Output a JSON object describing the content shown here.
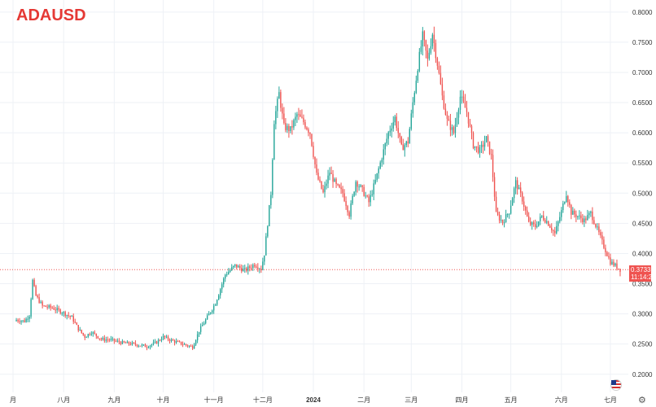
{
  "header": {
    "symbol": "ADAUSD"
  },
  "colors": {
    "up": "#26a69a",
    "down": "#ef5350",
    "title": "#e53935",
    "grid": "#eef1f6",
    "axis_text": "#333333"
  },
  "last_price": {
    "value": 0.3733,
    "label": "0.3733",
    "countdown": "11:14:25"
  },
  "icons": {
    "currency": "us-flag-icon",
    "settings": "gear-icon"
  },
  "chart_data": {
    "type": "candlestick",
    "title": "ADAUSD",
    "y_axis": {
      "position": "right",
      "range": [
        0.17,
        0.82
      ],
      "ticks": [
        "0.2000",
        "0.2500",
        "0.3000",
        "0.3500",
        "0.4000",
        "0.4500",
        "0.5000",
        "0.5500",
        "0.6000",
        "0.6500",
        "0.7000",
        "0.7500",
        "0.8000"
      ]
    },
    "x_axis": {
      "ticks": [
        "月",
        "八月",
        "九月",
        "十月",
        "十一月",
        "十二月",
        "2024",
        "二月",
        "三月",
        "四月",
        "五月",
        "六月",
        "七月"
      ],
      "tick_days": [
        -2,
        29,
        60,
        90,
        121,
        151,
        182,
        213,
        242,
        273,
        303,
        334,
        364
      ],
      "range_days": [
        -10,
        375
      ]
    },
    "grid": true,
    "close_path": [
      [
        0,
        0.29
      ],
      [
        5,
        0.288
      ],
      [
        8,
        0.298
      ],
      [
        10,
        0.355
      ],
      [
        12,
        0.33
      ],
      [
        16,
        0.313
      ],
      [
        22,
        0.31
      ],
      [
        28,
        0.303
      ],
      [
        34,
        0.294
      ],
      [
        38,
        0.275
      ],
      [
        42,
        0.262
      ],
      [
        46,
        0.27
      ],
      [
        52,
        0.258
      ],
      [
        58,
        0.257
      ],
      [
        65,
        0.252
      ],
      [
        72,
        0.25
      ],
      [
        80,
        0.246
      ],
      [
        86,
        0.253
      ],
      [
        90,
        0.262
      ],
      [
        95,
        0.256
      ],
      [
        102,
        0.25
      ],
      [
        108,
        0.245
      ],
      [
        112,
        0.272
      ],
      [
        116,
        0.29
      ],
      [
        122,
        0.318
      ],
      [
        128,
        0.365
      ],
      [
        134,
        0.38
      ],
      [
        140,
        0.372
      ],
      [
        146,
        0.382
      ],
      [
        150,
        0.375
      ],
      [
        152,
        0.4
      ],
      [
        156,
        0.5
      ],
      [
        158,
        0.62
      ],
      [
        161,
        0.665
      ],
      [
        164,
        0.61
      ],
      [
        168,
        0.605
      ],
      [
        172,
        0.63
      ],
      [
        176,
        0.618
      ],
      [
        180,
        0.6
      ],
      [
        184,
        0.53
      ],
      [
        188,
        0.5
      ],
      [
        192,
        0.535
      ],
      [
        196,
        0.512
      ],
      [
        200,
        0.5
      ],
      [
        204,
        0.465
      ],
      [
        208,
        0.52
      ],
      [
        212,
        0.505
      ],
      [
        216,
        0.485
      ],
      [
        220,
        0.52
      ],
      [
        224,
        0.56
      ],
      [
        228,
        0.6
      ],
      [
        232,
        0.625
      ],
      [
        236,
        0.575
      ],
      [
        240,
        0.585
      ],
      [
        243,
        0.65
      ],
      [
        246,
        0.71
      ],
      [
        249,
        0.76
      ],
      [
        252,
        0.72
      ],
      [
        255,
        0.765
      ],
      [
        258,
        0.715
      ],
      [
        261,
        0.66
      ],
      [
        264,
        0.62
      ],
      [
        268,
        0.6
      ],
      [
        272,
        0.66
      ],
      [
        276,
        0.635
      ],
      [
        280,
        0.58
      ],
      [
        284,
        0.57
      ],
      [
        288,
        0.59
      ],
      [
        291,
        0.56
      ],
      [
        294,
        0.465
      ],
      [
        298,
        0.452
      ],
      [
        302,
        0.47
      ],
      [
        306,
        0.518
      ],
      [
        310,
        0.49
      ],
      [
        314,
        0.45
      ],
      [
        318,
        0.445
      ],
      [
        322,
        0.462
      ],
      [
        326,
        0.45
      ],
      [
        330,
        0.433
      ],
      [
        334,
        0.47
      ],
      [
        337,
        0.5
      ],
      [
        340,
        0.468
      ],
      [
        344,
        0.462
      ],
      [
        348,
        0.455
      ],
      [
        352,
        0.467
      ],
      [
        356,
        0.44
      ],
      [
        360,
        0.412
      ],
      [
        364,
        0.386
      ],
      [
        368,
        0.378
      ],
      [
        370,
        0.3733
      ]
    ]
  }
}
